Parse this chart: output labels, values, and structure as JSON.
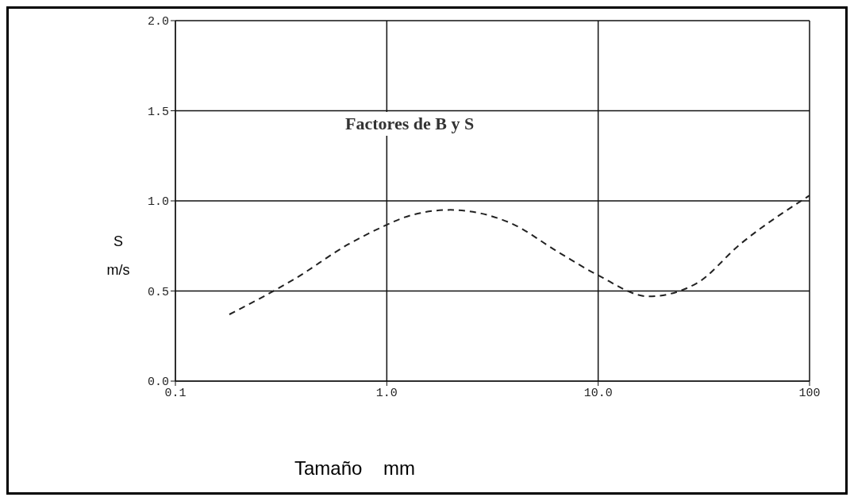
{
  "chart_data": {
    "type": "line",
    "title": "Factores de B y S",
    "xlabel": "Tamaño    mm",
    "ylabel": "S\nm/s",
    "x": [
      0.18,
      0.37,
      0.66,
      0.93,
      1.3,
      2.0,
      2.8,
      3.8,
      6.6,
      9.9,
      17.4,
      29,
      47,
      100
    ],
    "series": [
      {
        "color": "#222222",
        "values": [
          0.37,
          0.57,
          0.76,
          0.85,
          0.92,
          0.95,
          0.93,
          0.88,
          0.71,
          0.59,
          0.47,
          0.54,
          0.76,
          1.03
        ]
      }
    ],
    "log": "x",
    "xlim": [
      0.1,
      100
    ],
    "xticks": [
      0.1,
      {
        "value": 1,
        "label": "1.0"
      },
      {
        "value": 10,
        "label": "10.0"
      },
      100
    ],
    "ylim": [
      0,
      2
    ],
    "yticks": [
      {
        "value": 0,
        "label": "0.0"
      },
      0.5,
      {
        "value": 1,
        "label": "1.0"
      },
      1.5,
      {
        "value": 2,
        "label": "2.0"
      }
    ],
    "grid": true,
    "marker": "none",
    "line_style": "dashed"
  }
}
